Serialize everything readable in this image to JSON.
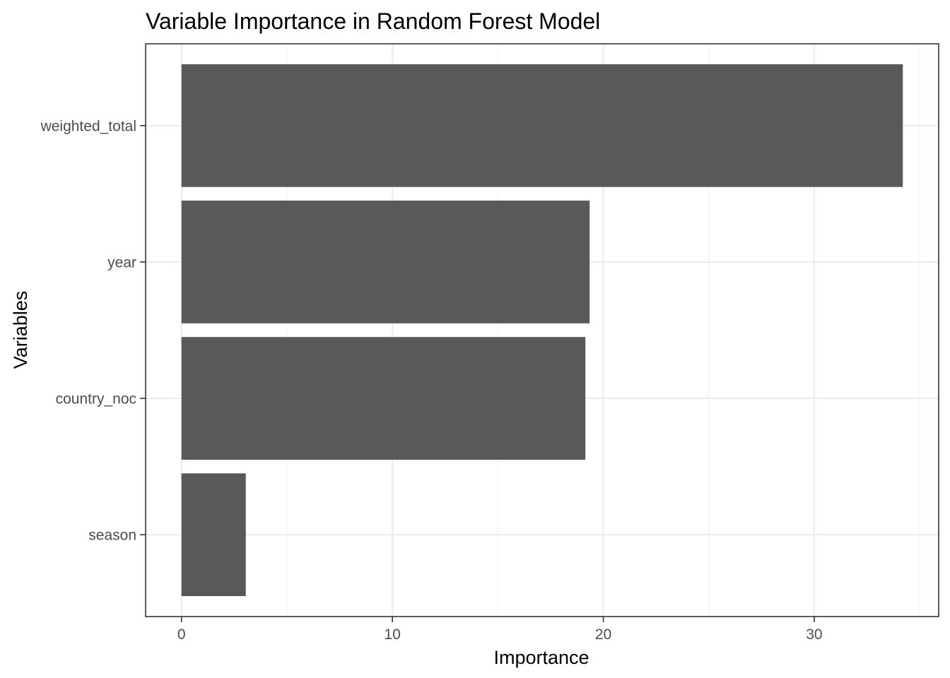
{
  "chart_data": {
    "type": "bar",
    "orientation": "horizontal",
    "title": "Variable Importance in Random Forest Model",
    "xlabel": "Importance",
    "ylabel": "Variables",
    "categories": [
      "weighted_total",
      "year",
      "country_noc",
      "season"
    ],
    "values": [
      34.2,
      19.35,
      19.15,
      3.05
    ],
    "xlim": [
      -1.7,
      35.9
    ],
    "x_ticks": [
      0,
      10,
      20,
      30
    ],
    "x_tick_labels": [
      "0",
      "10",
      "20",
      "30"
    ],
    "grid": true,
    "bar_color": "#595959",
    "legend": "none"
  }
}
